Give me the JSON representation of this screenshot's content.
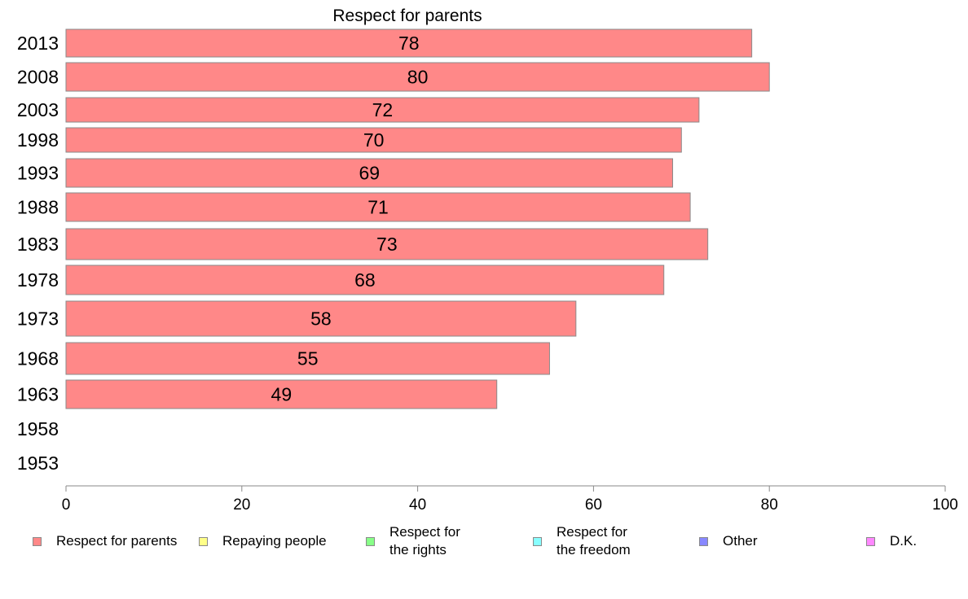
{
  "chart_data": {
    "type": "bar",
    "orientation": "horizontal",
    "title": "Respect for parents",
    "categories": [
      "2013",
      "2008",
      "2003",
      "1998",
      "1993",
      "1988",
      "1983",
      "1978",
      "1973",
      "1968",
      "1963",
      "1958",
      "1953"
    ],
    "series": [
      {
        "name": "Respect for parents",
        "color": "#ff8888",
        "values": [
          78,
          80,
          72,
          70,
          69,
          71,
          73,
          68,
          58,
          55,
          49,
          null,
          null
        ]
      }
    ],
    "data_labels": [
      "78",
      "80",
      "72",
      "70",
      "69",
      "71",
      "73",
      "68",
      "58",
      "55",
      "49",
      "",
      ""
    ],
    "xlim": [
      0,
      100
    ],
    "x_ticks": [
      "0",
      "20",
      "40",
      "60",
      "80",
      "100"
    ],
    "grid": false,
    "legend_position": "bottom"
  },
  "legend": {
    "items": [
      {
        "label": "Respect for parents",
        "color": "#ff8888"
      },
      {
        "label": "Repaying people",
        "color": "#ffff88"
      },
      {
        "label": "Respect for\nthe rights",
        "color": "#88ff88"
      },
      {
        "label": "Respect for\nthe freedom",
        "color": "#88ffff"
      },
      {
        "label": "Other",
        "color": "#8888ff"
      },
      {
        "label": "D.K.",
        "color": "#ff88ff"
      }
    ]
  }
}
